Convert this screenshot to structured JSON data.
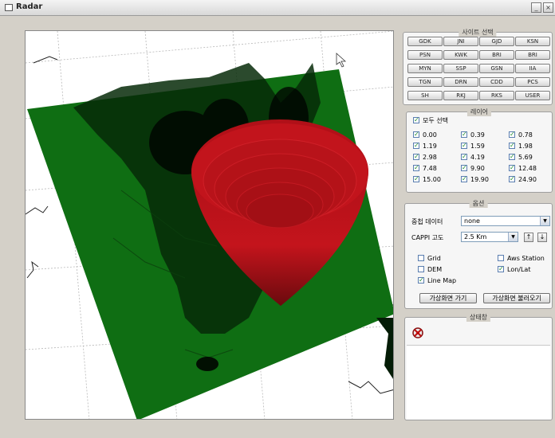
{
  "window": {
    "title": "Radar",
    "minimize_label": "_",
    "close_label": "×"
  },
  "sites_panel": {
    "title": "사이트 선택",
    "sites": [
      "GDK",
      "JNI",
      "GJD",
      "KSN",
      "PSN",
      "KWK",
      "BRI",
      "BRI",
      "MYN",
      "SSP",
      "GSN",
      "IIA",
      "TGN",
      "DRN",
      "CDD",
      "PCS",
      "SH",
      "RKJ",
      "RKS",
      "USER"
    ]
  },
  "layer_panel": {
    "title": "레이어",
    "select_all": "모두 선택",
    "angles": [
      "0.00",
      "0.39",
      "0.78",
      "1.19",
      "1.59",
      "1.98",
      "2.98",
      "4.19",
      "5.69",
      "7.48",
      "9.90",
      "12.48",
      "15.00",
      "19.90",
      "24.90"
    ]
  },
  "options_panel": {
    "title": "옵션",
    "overlay_label": "중첩 데이터",
    "overlay_value": "none",
    "cappi_label": "CAPPI 고도",
    "cappi_value": "2.5 Km",
    "up_label": "↑",
    "down_label": "↓",
    "checks": [
      {
        "label": "Grid",
        "checked": false
      },
      {
        "label": "Aws Station",
        "checked": false
      },
      {
        "label": "DEM",
        "checked": false
      },
      {
        "label": "Lon/Lat",
        "checked": true
      },
      {
        "label": "Line Map",
        "checked": true
      }
    ],
    "btn_load": "가상화면 가기",
    "btn_save": "가상화면 불러오기"
  },
  "log_panel": {
    "title": "상태창"
  },
  "colors": {
    "terrain": "#0f6e13",
    "radar_cone": "#c8141c"
  }
}
